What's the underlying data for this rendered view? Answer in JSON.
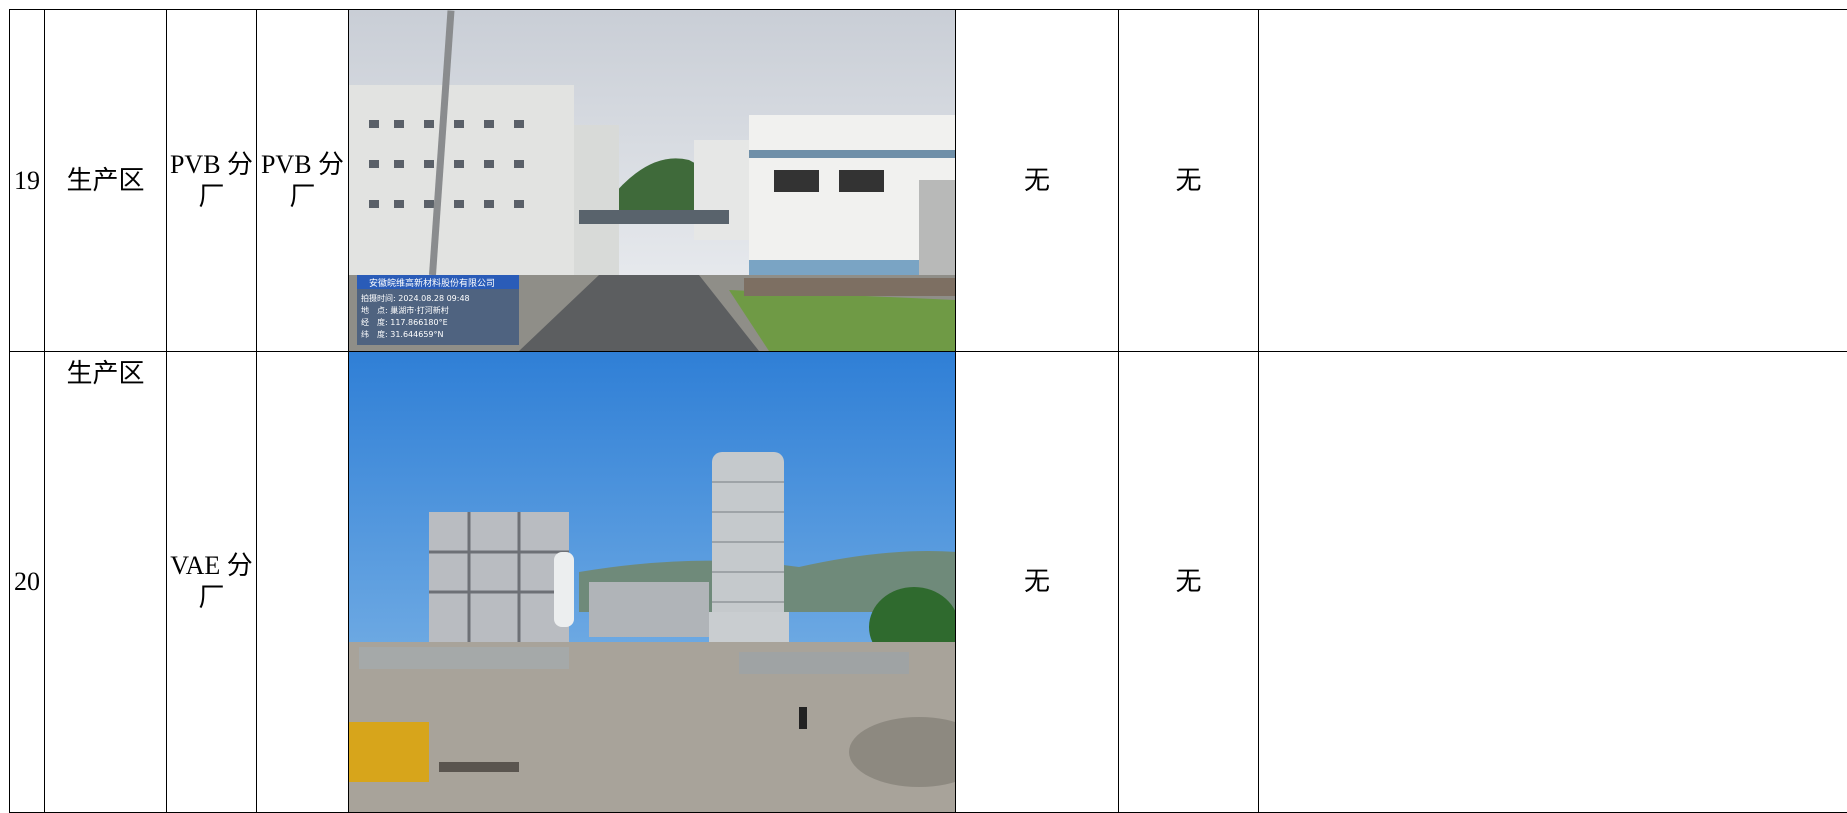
{
  "table": {
    "rows": [
      {
        "no": "19",
        "area": "生产区",
        "unit": "PVB 分厂",
        "sub_unit": "PVB 分厂",
        "col6": "无",
        "col7": "无",
        "photo_stamp": {
          "company": "安徽皖维高新材料股份有限公司",
          "time": "拍摄时间: 2024.08.28 09:48",
          "place": "地　点: 巢湖市·打河新村",
          "longitude": "经　度: 117.866180°E",
          "latitude": "纬　度: 31.644659°N"
        }
      },
      {
        "no": "20",
        "area": "生产区",
        "unit": "VAE 分厂",
        "col6": "无",
        "col7": "无"
      }
    ]
  }
}
